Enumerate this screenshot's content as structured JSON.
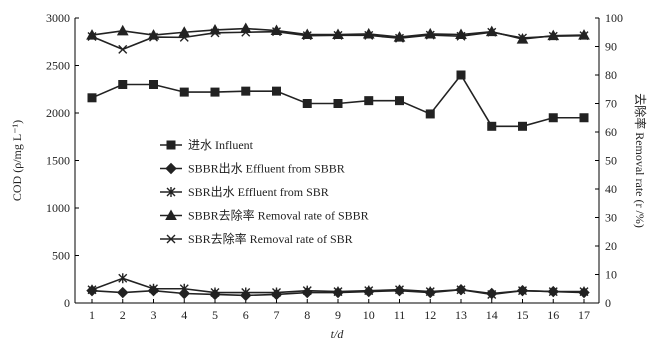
{
  "chart_data": {
    "type": "line",
    "x": [
      1,
      2,
      3,
      4,
      5,
      6,
      7,
      8,
      9,
      10,
      11,
      12,
      13,
      14,
      15,
      16,
      17
    ],
    "xlabel": "t/d",
    "ylabel": "COD (ρ/mg L⁻¹)",
    "y2label": "去除率 Removal rate (r /%)",
    "ylim": [
      0,
      3000
    ],
    "y2lim": [
      0,
      100
    ],
    "yticks": [
      0,
      500,
      1000,
      1500,
      2000,
      2500,
      3000
    ],
    "y2ticks": [
      0,
      10,
      20,
      30,
      40,
      50,
      60,
      70,
      80,
      90,
      100
    ],
    "grid": false,
    "legend_position": "center-left",
    "series": [
      {
        "name": "进水 Influent",
        "axis": "left",
        "marker": "square",
        "values": [
          2160,
          2300,
          2300,
          2220,
          2220,
          2230,
          2230,
          2100,
          2100,
          2130,
          2130,
          1990,
          2400,
          1860,
          1860,
          1950,
          1950
        ]
      },
      {
        "name": "SBBR出水  Effluent from SBBR",
        "axis": "left",
        "marker": "diamond",
        "values": [
          130,
          110,
          130,
          100,
          90,
          80,
          90,
          110,
          110,
          120,
          130,
          110,
          140,
          100,
          130,
          120,
          110
        ]
      },
      {
        "name": "SBR出水 Effluent from SBR",
        "axis": "left",
        "marker": "asterisk",
        "values": [
          140,
          260,
          150,
          150,
          110,
          110,
          110,
          130,
          120,
          130,
          140,
          120,
          140,
          90,
          130,
          120,
          120
        ]
      },
      {
        "name": "SBBR去除率  Removal rate of SBBR",
        "axis": "right",
        "marker": "triangle",
        "values": [
          94,
          95.5,
          94,
          95,
          95.8,
          96.3,
          95.6,
          94.2,
          94.2,
          94.4,
          93.3,
          94.4,
          94.2,
          95.2,
          92.6,
          93.8,
          94
        ]
      },
      {
        "name": "SBR去除率  Removal rate of SBR",
        "axis": "right",
        "marker": "x",
        "values": [
          93.5,
          89,
          93.3,
          93.2,
          94.8,
          95,
          95.2,
          93.8,
          93.9,
          93.9,
          92.9,
          94,
          93.6,
          95,
          93,
          93.6,
          93.8
        ]
      }
    ]
  }
}
